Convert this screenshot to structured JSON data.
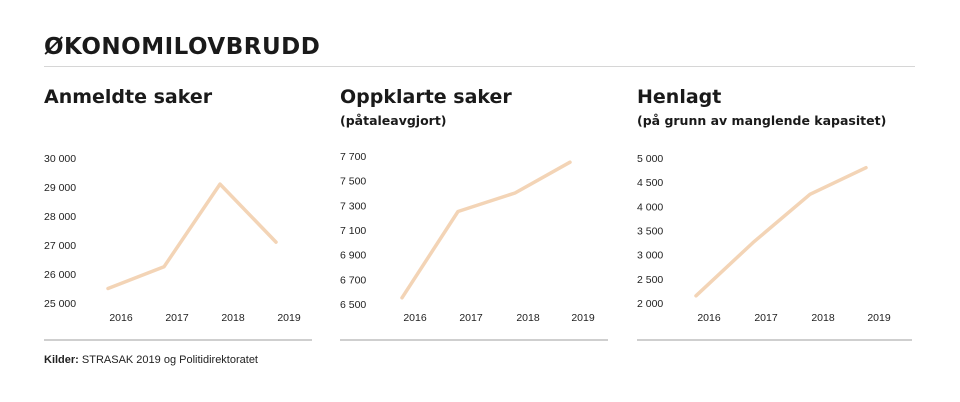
{
  "header": {
    "title": "ØKONOMILOVBRUDD"
  },
  "source": {
    "label": "Kilder:",
    "text": " STRASAK 2019 og Politidirektoratet"
  },
  "line_color": "#f3d4b6",
  "chart_data": [
    {
      "type": "line",
      "title": "Anmeldte saker",
      "subtitle": "",
      "x": [
        "2016",
        "2017",
        "2018",
        "2019"
      ],
      "series": [
        {
          "values": [
            25500,
            26250,
            29100,
            27100
          ]
        }
      ],
      "yticks": [
        25000,
        26000,
        27000,
        28000,
        29000,
        30000
      ],
      "ytick_labels": [
        "25 000",
        "26 000",
        "27 000",
        "28 000",
        "29 000",
        "30 000"
      ],
      "ylim": [
        25000,
        30000
      ],
      "grid": false
    },
    {
      "type": "line",
      "title": "Oppklarte saker",
      "subtitle": "(påtaleavgjort)",
      "x": [
        "2016",
        "2017",
        "2018",
        "2019"
      ],
      "series": [
        {
          "values": [
            6550,
            7250,
            7400,
            7650
          ]
        }
      ],
      "yticks": [
        6500,
        6700,
        6900,
        7100,
        7300,
        7500,
        7700
      ],
      "ytick_labels": [
        "6 500",
        "6 700",
        "6 900",
        "7 100",
        "7 300",
        "7 500",
        "7 700"
      ],
      "ylim": [
        6500,
        7700
      ],
      "grid": false
    },
    {
      "type": "line",
      "title": "Henlagt",
      "subtitle": "(på grunn av manglende kapasitet)",
      "x": [
        "2016",
        "2017",
        "2018",
        "2019"
      ],
      "series": [
        {
          "values": [
            2150,
            3250,
            4250,
            4800
          ]
        }
      ],
      "yticks": [
        2000,
        2500,
        3000,
        3500,
        4000,
        4500,
        5000
      ],
      "ytick_labels": [
        "2 000",
        "2 500",
        "3 000",
        "3 500",
        "4 000",
        "4 500",
        "5 000"
      ],
      "ylim": [
        2000,
        5000
      ],
      "grid": false
    }
  ]
}
